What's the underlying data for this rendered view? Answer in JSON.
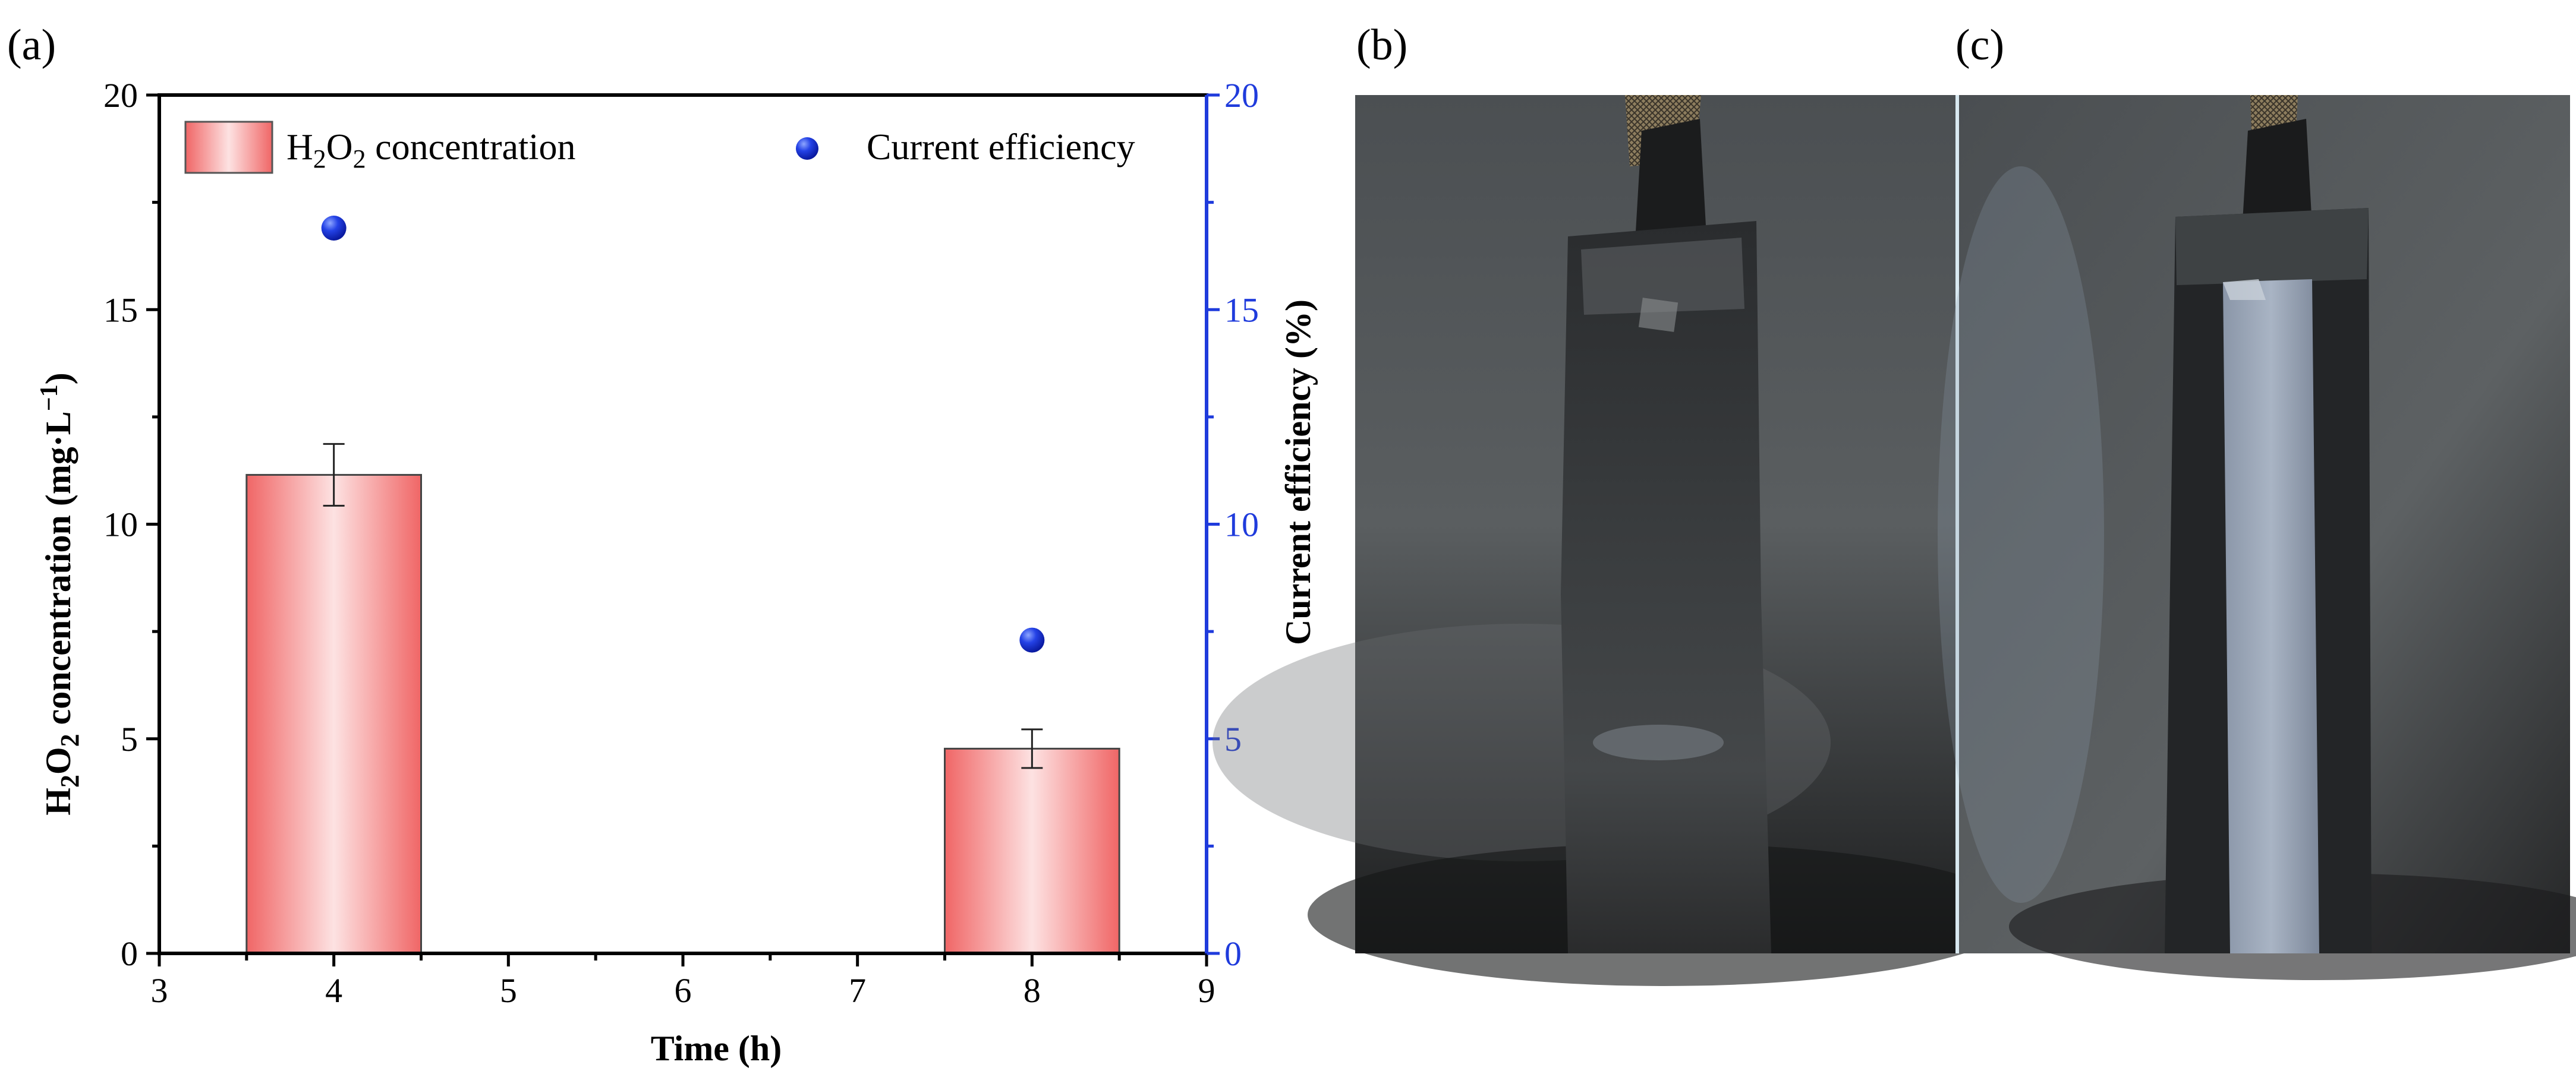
{
  "panels": {
    "a_label": "(a)",
    "b_label": "(b)",
    "c_label": "(c)"
  },
  "chart_data": {
    "type": "bar",
    "title": "",
    "xlabel": "Time (h)",
    "ylabel_left": {
      "parts": [
        "H",
        "2",
        "O",
        "2",
        " concentration (mg·L",
        "−1",
        ")"
      ]
    },
    "ylabel_right": "Current efficiency (%)",
    "xlim": [
      3,
      9
    ],
    "xticks": [
      "3",
      "4",
      "5",
      "6",
      "7",
      "8",
      "9"
    ],
    "ylim_left": [
      0,
      20
    ],
    "yticks_left": [
      "0",
      "5",
      "10",
      "15",
      "20"
    ],
    "ylim_right": [
      0,
      20
    ],
    "yticks_right": [
      "0",
      "5",
      "10",
      "15",
      "20"
    ],
    "grid": false,
    "legend_position": "top",
    "series": [
      {
        "name": "H2O2 concentration",
        "name_parts": [
          "H",
          "2",
          "O",
          "2",
          " concentration"
        ],
        "kind": "bar",
        "axis": "left",
        "x": [
          4,
          8
        ],
        "values": [
          11.15,
          4.77
        ],
        "errors": [
          0.72,
          0.45
        ],
        "bar_width": 1.0,
        "color": "#f06e6e"
      },
      {
        "name": "Current efficiency",
        "kind": "scatter",
        "axis": "right",
        "x": [
          4,
          8
        ],
        "values": [
          16.9,
          7.3
        ],
        "color": "#1f3bdc"
      }
    ]
  },
  "colors": {
    "axis": "#000000",
    "right_axis": "#1f3bdc",
    "bar_edge": "#444444"
  },
  "images": {
    "b": "photo of dark electrode strip with light mesh tab",
    "c": "photo of dark electrode strip with light grey centre band"
  }
}
